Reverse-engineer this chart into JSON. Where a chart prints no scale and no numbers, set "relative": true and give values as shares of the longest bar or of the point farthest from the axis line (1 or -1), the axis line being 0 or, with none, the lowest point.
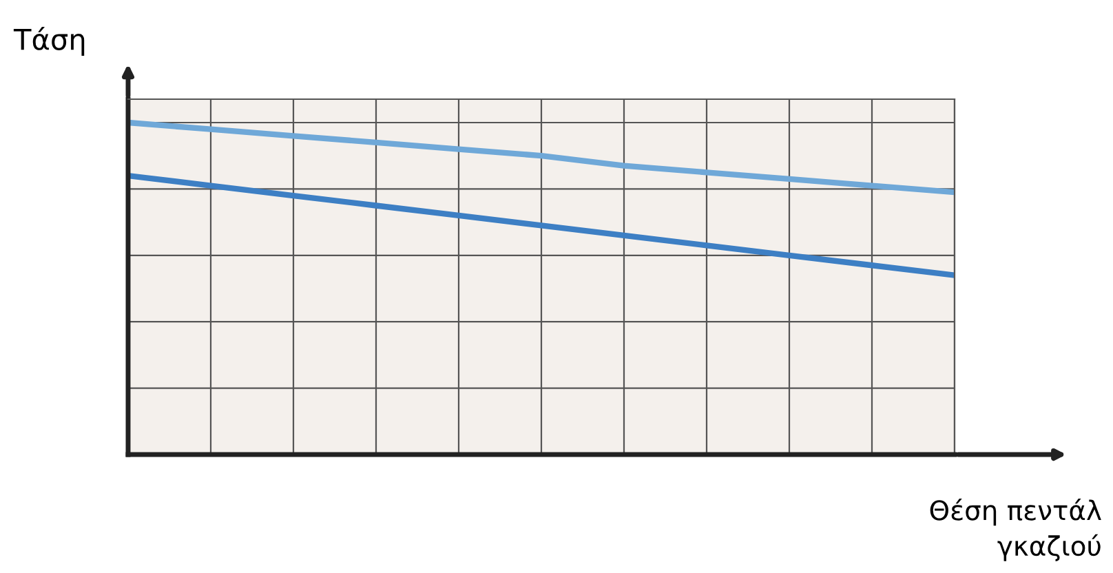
{
  "chart_data": {
    "type": "line",
    "relative": true,
    "ylabel": "Τάση",
    "xlabel": "Θέση πεντάλ\nγκαζιού",
    "grid": true,
    "categories": [
      null,
      null,
      null,
      null,
      null,
      null,
      null,
      null,
      null,
      null,
      null
    ],
    "series": [
      {
        "color": "#6fa8d8",
        "values": [
          1.0,
          0.98,
          0.96,
          0.94,
          0.92,
          0.9,
          0.87,
          0.85,
          0.83,
          0.81,
          0.79
        ]
      },
      {
        "color": "#3d7fc4",
        "values": [
          0.84,
          0.81,
          0.78,
          0.75,
          0.72,
          0.69,
          0.66,
          0.63,
          0.6,
          0.57,
          0.54
        ]
      }
    ]
  }
}
